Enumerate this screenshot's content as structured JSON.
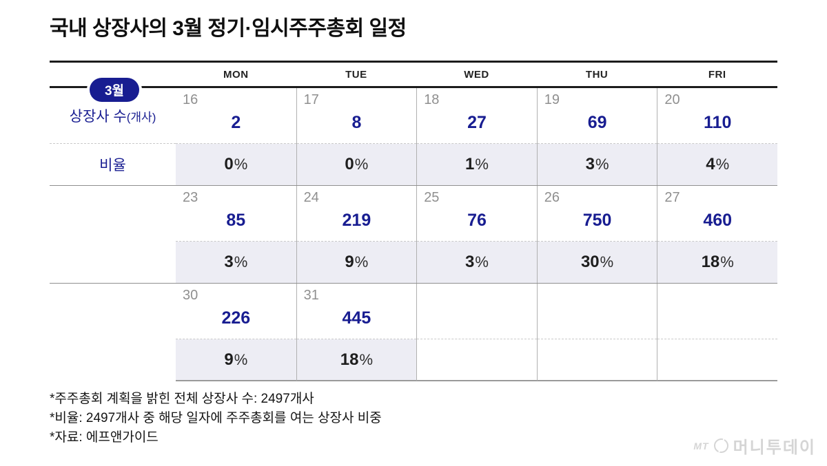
{
  "title": "국내 상장사의 3월 정기·임시주주총회 일정",
  "calendar": {
    "month_badge": "3월",
    "day_headers": [
      "MON",
      "TUE",
      "WED",
      "THU",
      "FRI"
    ],
    "row_label_count_main": "상장사 수",
    "row_label_count_sub": "(개사)",
    "row_label_ratio": "비율",
    "percent_sign": "%",
    "weeks": [
      {
        "days": [
          {
            "date": "16",
            "count": "2",
            "pct": "0"
          },
          {
            "date": "17",
            "count": "8",
            "pct": "0"
          },
          {
            "date": "18",
            "count": "27",
            "pct": "1"
          },
          {
            "date": "19",
            "count": "69",
            "pct": "3"
          },
          {
            "date": "20",
            "count": "110",
            "pct": "4"
          }
        ]
      },
      {
        "days": [
          {
            "date": "23",
            "count": "85",
            "pct": "3"
          },
          {
            "date": "24",
            "count": "219",
            "pct": "9"
          },
          {
            "date": "25",
            "count": "76",
            "pct": "3"
          },
          {
            "date": "26",
            "count": "750",
            "pct": "30"
          },
          {
            "date": "27",
            "count": "460",
            "pct": "18"
          }
        ]
      },
      {
        "days": [
          {
            "date": "30",
            "count": "226",
            "pct": "9"
          },
          {
            "date": "31",
            "count": "445",
            "pct": "18"
          }
        ]
      }
    ]
  },
  "footnotes": [
    "*주주총회 계획을 밝힌 전체 상장사 수: 2497개사",
    "*비율: 2497개사 중 해당 일자에 주주총회를 여는 상장사 비중",
    "*자료: 에프앤가이드"
  ],
  "logo": {
    "mt": "MT",
    "name": "머니투데이"
  },
  "colors": {
    "navy": "#181d91",
    "pct_row_shade": "#ededf4",
    "date_gray": "#8f8f8f",
    "header_line": "#1b1b1b",
    "grid_line": "#b0b0b0",
    "logo_gray": "#d5d5d5"
  },
  "chart_data": {
    "type": "table",
    "title": "국내 상장사의 3월 정기·임시주주총회 일정",
    "columns": [
      "MON",
      "TUE",
      "WED",
      "THU",
      "FRI"
    ],
    "row_metrics": [
      "상장사 수(개사)",
      "비율"
    ],
    "weeks": [
      {
        "dates": [
          16,
          17,
          18,
          19,
          20
        ],
        "counts": [
          2,
          8,
          27,
          69,
          110
        ],
        "ratios_pct": [
          0,
          0,
          1,
          3,
          4
        ]
      },
      {
        "dates": [
          23,
          24,
          25,
          26,
          27
        ],
        "counts": [
          85,
          219,
          76,
          750,
          460
        ],
        "ratios_pct": [
          3,
          9,
          3,
          30,
          18
        ]
      },
      {
        "dates": [
          30,
          31
        ],
        "counts": [
          226,
          445
        ],
        "ratios_pct": [
          9,
          18
        ]
      }
    ],
    "total_listed_companies": 2497,
    "source": "에프앤가이드"
  }
}
